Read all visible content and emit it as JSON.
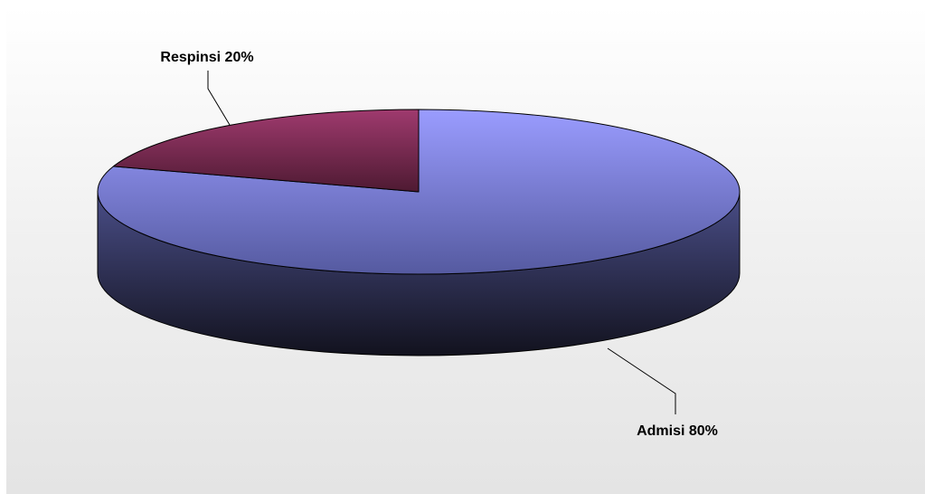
{
  "chart_data": {
    "type": "pie",
    "style": "3d",
    "title": "",
    "slices": [
      {
        "label": "Admisi",
        "value": 80,
        "display": "Admisi 80%",
        "color": "#9a9cff"
      },
      {
        "label": "Respinsi",
        "value": 20,
        "display": "Respinsi 20%",
        "color": "#993366"
      }
    ],
    "legend": "none",
    "grid": false
  }
}
